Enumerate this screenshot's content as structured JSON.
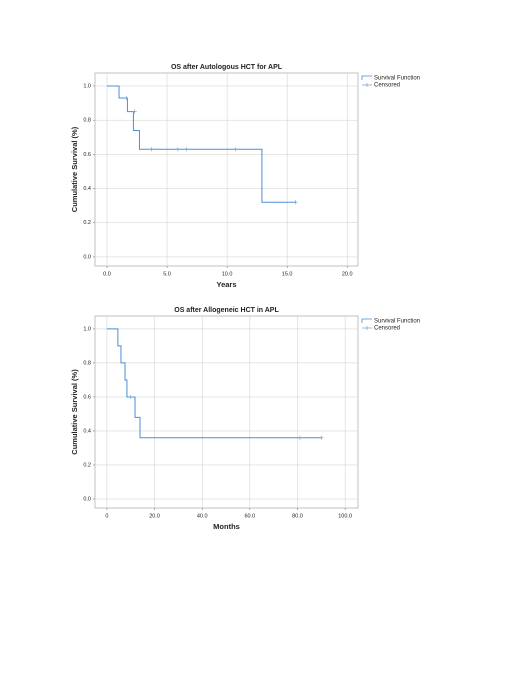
{
  "chart_data": [
    {
      "type": "step",
      "title": "OS after Autologous HCT for APL",
      "x_label": "Years",
      "y_label": "Cumulative Survival (%)",
      "series": [
        {
          "name": "Survival Function",
          "color": "#4a8fd8",
          "x": [
            0,
            1.0,
            1.7,
            2.2,
            2.7,
            12.9,
            15.7
          ],
          "values": [
            1.0,
            0.93,
            0.85,
            0.74,
            0.63,
            0.32,
            0.32
          ]
        },
        {
          "name": "Censored",
          "color": "#6aa6e0",
          "marker": "censor",
          "x": [
            1.6,
            2.3,
            3.7,
            5.9,
            6.6,
            10.7,
            15.7
          ],
          "values": [
            0.93,
            0.85,
            0.63,
            0.63,
            0.63,
            0.63,
            0.32
          ]
        }
      ],
      "xlim": [
        -1.0,
        20.9
      ],
      "ylim": [
        -0.053,
        1.076
      ],
      "xticks": [
        {
          "value": 0,
          "label": "0.0"
        },
        {
          "value": 5,
          "label": "5.0"
        },
        {
          "value": 10,
          "label": "10.0"
        },
        {
          "value": 15,
          "label": "15.0"
        },
        {
          "value": 20,
          "label": "20.0"
        }
      ],
      "yticks": [
        {
          "value": 0,
          "label": "0.0"
        },
        {
          "value": 0.2,
          "label": "0.2"
        },
        {
          "value": 0.4,
          "label": "0.4"
        },
        {
          "value": 0.6,
          "label": "0.6"
        },
        {
          "value": 0.8,
          "label": "0.8"
        },
        {
          "value": 1,
          "label": "1.0"
        }
      ],
      "grid": true,
      "legend": "outside-right"
    },
    {
      "type": "step",
      "title": "OS after Allogeneic HCT in APL",
      "x_label": "Months",
      "y_label": "Cumulative Survival (%)",
      "series": [
        {
          "name": "Survival Function",
          "color": "#4a8fd8",
          "x": [
            0,
            4.6,
            5.9,
            7.6,
            8.4,
            11.8,
            13.9,
            90
          ],
          "values": [
            1.0,
            0.9,
            0.8,
            0.7,
            0.6,
            0.48,
            0.36,
            0.36
          ]
        },
        {
          "name": "Censored",
          "color": "#6aa6e0",
          "marker": "censor",
          "x": [
            10,
            81,
            90
          ],
          "values": [
            0.6,
            0.36,
            0.36
          ]
        }
      ],
      "xlim": [
        -5.0,
        105.4
      ],
      "ylim": [
        -0.053,
        1.076
      ],
      "xticks": [
        {
          "value": 0,
          "label": "0"
        },
        {
          "value": 20,
          "label": "20.0"
        },
        {
          "value": 40,
          "label": "40.0"
        },
        {
          "value": 60,
          "label": "60.0"
        },
        {
          "value": 80,
          "label": "80.0"
        },
        {
          "value": 100,
          "label": "100.0"
        }
      ],
      "yticks": [
        {
          "value": 0,
          "label": "0.0"
        },
        {
          "value": 0.2,
          "label": "0.2"
        },
        {
          "value": 0.4,
          "label": "0.4"
        },
        {
          "value": 0.6,
          "label": "0.6"
        },
        {
          "value": 0.8,
          "label": "0.8"
        },
        {
          "value": 1,
          "label": "1.0"
        }
      ],
      "grid": true,
      "legend": "outside-right"
    }
  ]
}
